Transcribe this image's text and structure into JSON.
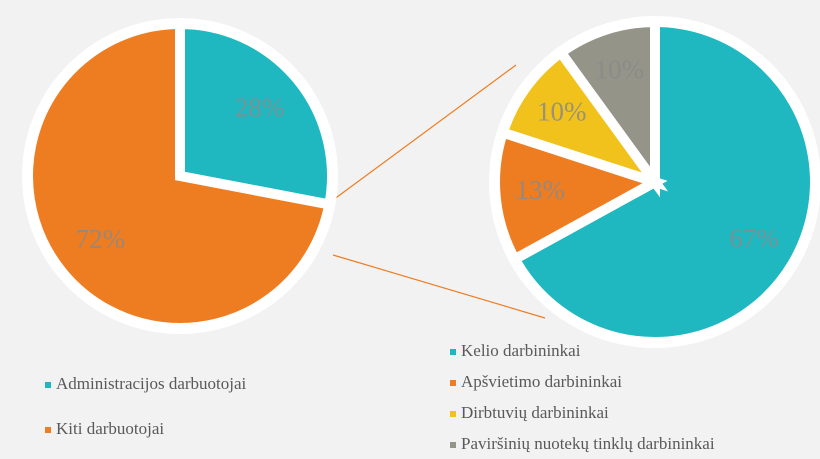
{
  "chart_data": [
    {
      "type": "pie",
      "categories": [
        "Administracijos darbuotojai",
        "Kiti darbuotojai"
      ],
      "values": [
        28,
        72
      ],
      "value_labels": [
        "28%",
        "72%"
      ],
      "colors": [
        "#1fb8c1",
        "#ee7d22"
      ]
    },
    {
      "type": "pie",
      "categories": [
        "Kelio darbininkai",
        "Apšvietimo darbininkai",
        "Dirbtuvių darbininkai",
        "Paviršinių nuotekų tinklų darbininkai"
      ],
      "values": [
        67,
        13,
        10,
        10
      ],
      "value_labels": [
        "67%",
        "13%",
        "10%",
        "10%"
      ],
      "colors": [
        "#1fb8c1",
        "#ee7d22",
        "#f1c21b",
        "#959489"
      ]
    }
  ]
}
